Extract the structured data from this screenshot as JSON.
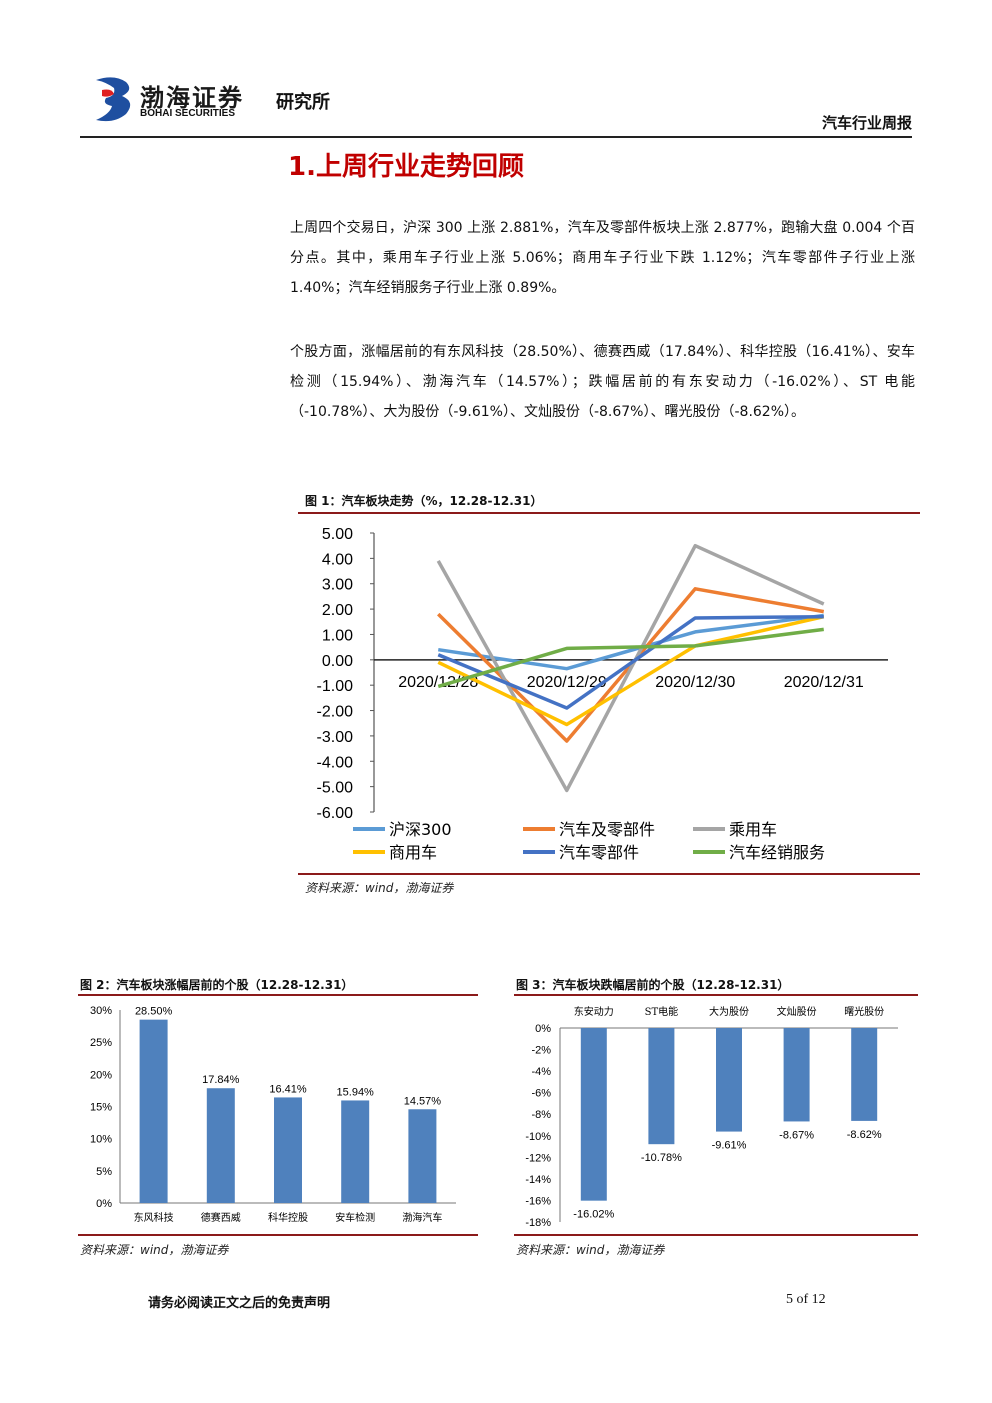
{
  "header": {
    "company": "渤海证券",
    "company_en": "BOHAI SECURITIES",
    "dept": "研究所",
    "report": "汽车行业周报"
  },
  "section_title": "1.上周行业走势回顾",
  "paragraphs": [
    "上周四个交易日，沪深 300 上涨 2.881%，汽车及零部件板块上涨 2.877%，跑输大盘 0.004 个百分点。其中，乘用车子行业上涨 5.06%；商用车子行业下跌 1.12%；汽车零部件子行业上涨 1.40%；汽车经销服务子行业上涨 0.89%。",
    "个股方面，涨幅居前的有东风科技（28.50%）、德赛西威（17.84%）、科华控股（16.41%）、安车检测（15.94%）、渤海汽车（14.57%）；跌幅居前的有东安动力（-16.02%）、ST 电能（-10.78%）、大为股份（-9.61%）、文灿股份（-8.67%）、曙光股份（-8.62%）。"
  ],
  "fig1": {
    "title": "图 1：汽车板块走势（%，12.28-12.31）",
    "source": "资料来源：wind，渤海证券"
  },
  "fig2": {
    "title": "图 2：汽车板块涨幅居前的个股（12.28-12.31）",
    "source": "资料来源：wind，渤海证券"
  },
  "fig3": {
    "title": "图 3：汽车板块跌幅居前的个股（12.28-12.31）",
    "source": "资料来源：wind，渤海证券"
  },
  "footer": {
    "disclaimer": "请务必阅读正文之后的免责声明",
    "page": "5 of 12"
  },
  "chart_data": [
    {
      "type": "line",
      "categories": [
        "2020/12/28",
        "2020/12/29",
        "2020/12/30",
        "2020/12/31"
      ],
      "ylim": [
        -6,
        5
      ],
      "yticks": [
        "5.00",
        "4.00",
        "3.00",
        "2.00",
        "1.00",
        "0.00",
        "-1.00",
        "-2.00",
        "-3.00",
        "-4.00",
        "-5.00",
        "-6.00"
      ],
      "legend": "bottom",
      "series": [
        {
          "name": "沪深300",
          "color": "#5b9bd5",
          "values": [
            0.4,
            -0.35,
            1.1,
            1.75
          ]
        },
        {
          "name": "汽车及零部件",
          "color": "#ed7d31",
          "values": [
            1.8,
            -3.2,
            2.8,
            1.9
          ]
        },
        {
          "name": "乘用车",
          "color": "#a5a5a5",
          "values": [
            3.9,
            -5.15,
            4.5,
            2.2
          ]
        },
        {
          "name": "商用车",
          "color": "#ffc000",
          "values": [
            -0.1,
            -2.55,
            0.55,
            1.7
          ]
        },
        {
          "name": "汽车零部件",
          "color": "#4472c4",
          "values": [
            0.2,
            -1.9,
            1.65,
            1.7
          ]
        },
        {
          "name": "汽车经销服务",
          "color": "#70ad47",
          "values": [
            -1.05,
            0.45,
            0.55,
            1.2
          ]
        }
      ]
    },
    {
      "type": "bar",
      "categories": [
        "东风科技",
        "德赛西威",
        "科华控股",
        "安车检测",
        "渤海汽车"
      ],
      "values": [
        28.5,
        17.84,
        16.41,
        15.94,
        14.57
      ],
      "labels": [
        "28.50%",
        "17.84%",
        "16.41%",
        "15.94%",
        "14.57%"
      ],
      "ylim": [
        0,
        30
      ],
      "yticks": [
        "30%",
        "25%",
        "20%",
        "15%",
        "10%",
        "5%",
        "0%"
      ],
      "color": "#4f81bd"
    },
    {
      "type": "bar",
      "categories": [
        "东安动力",
        "ST电能",
        "大为股份",
        "文灿股份",
        "曙光股份"
      ],
      "values": [
        -16.02,
        -10.78,
        -9.61,
        -8.67,
        -8.62
      ],
      "labels": [
        "-16.02%",
        "-10.78%",
        "-9.61%",
        "-8.67%",
        "-8.62%"
      ],
      "ylim": [
        -18,
        0
      ],
      "yticks": [
        "0%",
        "-2%",
        "-4%",
        "-6%",
        "-8%",
        "-10%",
        "-12%",
        "-14%",
        "-16%",
        "-18%"
      ],
      "color": "#4f81bd"
    }
  ]
}
